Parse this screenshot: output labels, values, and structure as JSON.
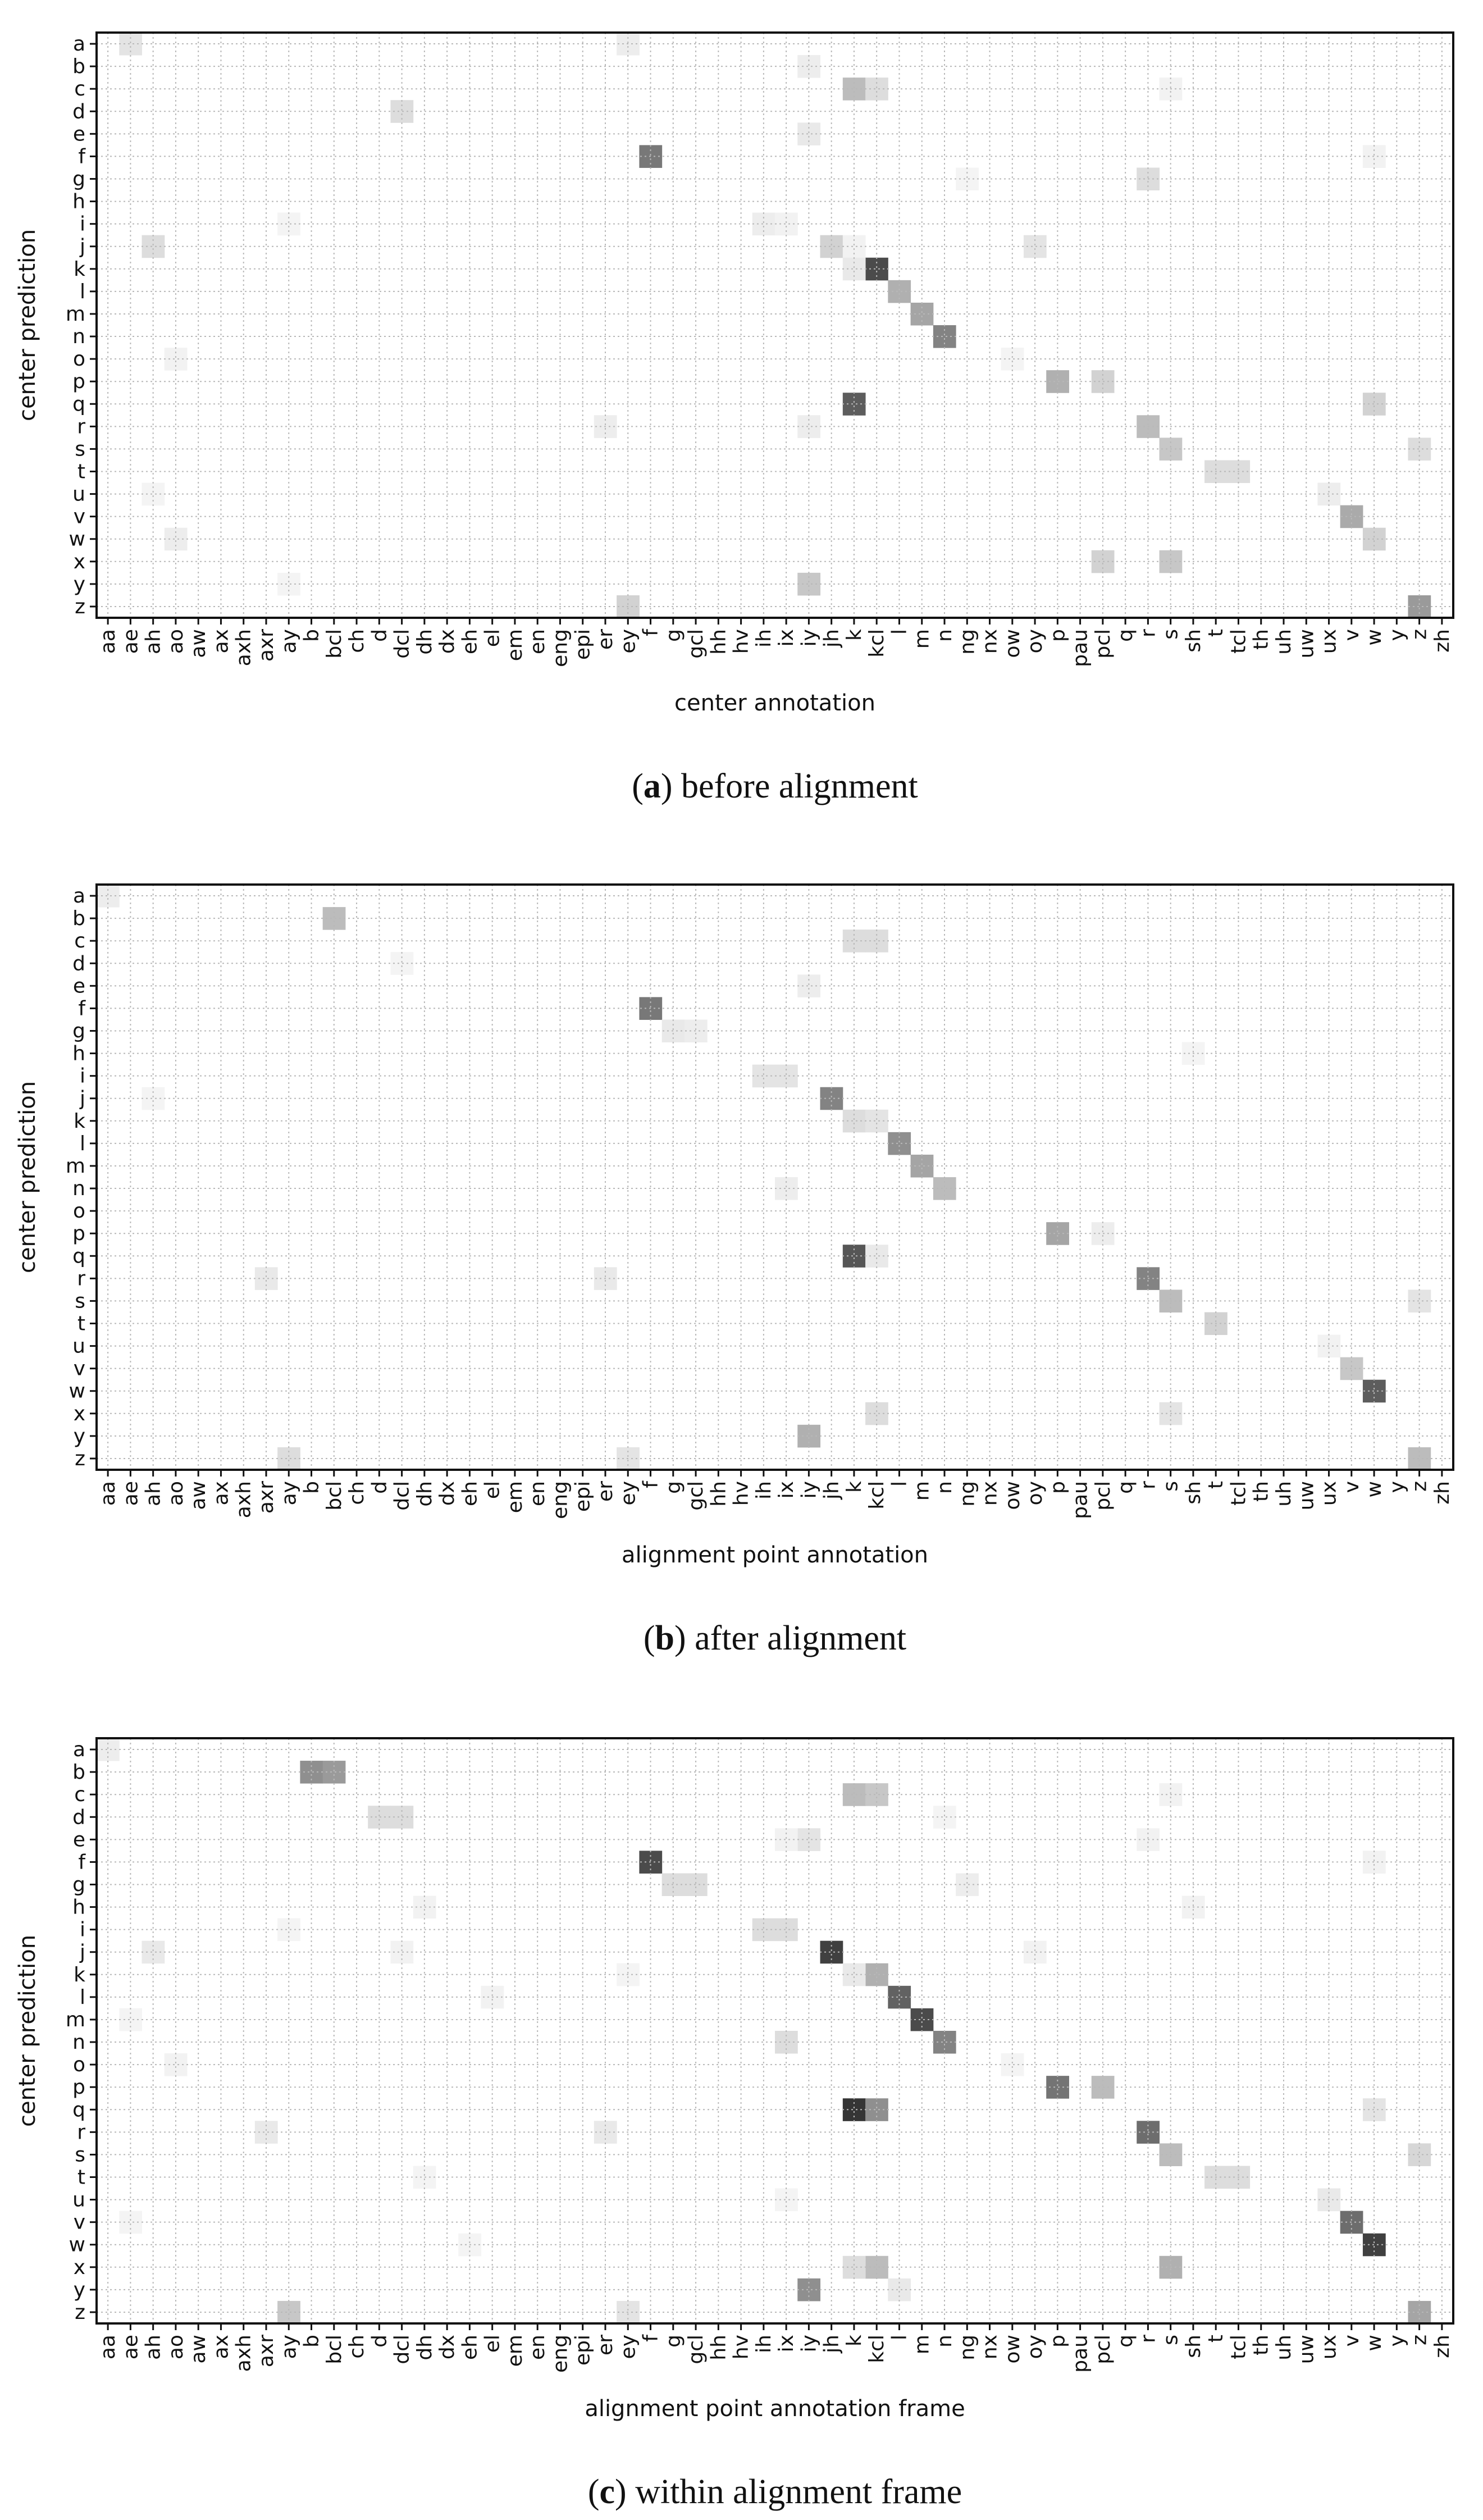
{
  "chart_data": [
    {
      "type": "heatmap",
      "title": "",
      "xlabel": "center annotation",
      "ylabel": "center prediction",
      "caption_letter": "a",
      "caption_text": "before alignment",
      "grid": true,
      "colormap": "grayscale (white = 0, dark = high)",
      "x_categories": [
        "aa",
        "ae",
        "ah",
        "ao",
        "aw",
        "ax",
        "axh",
        "axr",
        "ay",
        "b",
        "bcl",
        "ch",
        "d",
        "dcl",
        "dh",
        "dx",
        "eh",
        "el",
        "em",
        "en",
        "eng",
        "epi",
        "er",
        "ey",
        "f",
        "g",
        "gcl",
        "hh",
        "hv",
        "ih",
        "ix",
        "iy",
        "jh",
        "k",
        "kcl",
        "l",
        "m",
        "n",
        "ng",
        "nx",
        "ow",
        "oy",
        "p",
        "pau",
        "pcl",
        "q",
        "r",
        "s",
        "sh",
        "t",
        "tcl",
        "th",
        "uh",
        "uw",
        "ux",
        "v",
        "w",
        "y",
        "z",
        "zh"
      ],
      "y_categories": [
        "a",
        "b",
        "c",
        "d",
        "e",
        "f",
        "g",
        "h",
        "i",
        "j",
        "k",
        "l",
        "m",
        "n",
        "o",
        "p",
        "q",
        "r",
        "s",
        "t",
        "u",
        "v",
        "w",
        "x",
        "y",
        "z"
      ],
      "cells": [
        [
          "a",
          "ae",
          0.12
        ],
        [
          "a",
          "ey",
          0.08
        ],
        [
          "b",
          "iy",
          0.08
        ],
        [
          "c",
          "k",
          0.3
        ],
        [
          "c",
          "kcl",
          0.15
        ],
        [
          "c",
          "s",
          0.06
        ],
        [
          "d",
          "dcl",
          0.15
        ],
        [
          "e",
          "iy",
          0.1
        ],
        [
          "f",
          "f",
          0.6
        ],
        [
          "f",
          "w",
          0.06
        ],
        [
          "g",
          "r",
          0.15
        ],
        [
          "g",
          "ng",
          0.05
        ],
        [
          "i",
          "ih",
          0.08
        ],
        [
          "i",
          "ix",
          0.06
        ],
        [
          "i",
          "ay",
          0.05
        ],
        [
          "j",
          "ah",
          0.15
        ],
        [
          "j",
          "jh",
          0.2
        ],
        [
          "j",
          "oy",
          0.12
        ],
        [
          "j",
          "k",
          0.06
        ],
        [
          "k",
          "kcl",
          0.8
        ],
        [
          "k",
          "k",
          0.1
        ],
        [
          "l",
          "l",
          0.35
        ],
        [
          "m",
          "m",
          0.4
        ],
        [
          "n",
          "n",
          0.55
        ],
        [
          "o",
          "ao",
          0.06
        ],
        [
          "o",
          "ow",
          0.05
        ],
        [
          "p",
          "p",
          0.35
        ],
        [
          "p",
          "pcl",
          0.2
        ],
        [
          "q",
          "k",
          0.72
        ],
        [
          "q",
          "w",
          0.2
        ],
        [
          "r",
          "r",
          0.3
        ],
        [
          "r",
          "er",
          0.08
        ],
        [
          "r",
          "iy",
          0.08
        ],
        [
          "s",
          "s",
          0.25
        ],
        [
          "s",
          "z",
          0.15
        ],
        [
          "t",
          "t",
          0.15
        ],
        [
          "t",
          "tcl",
          0.15
        ],
        [
          "u",
          "ux",
          0.08
        ],
        [
          "u",
          "ah",
          0.05
        ],
        [
          "v",
          "v",
          0.38
        ],
        [
          "w",
          "w",
          0.2
        ],
        [
          "w",
          "ao",
          0.08
        ],
        [
          "x",
          "pcl",
          0.2
        ],
        [
          "x",
          "s",
          0.25
        ],
        [
          "y",
          "iy",
          0.25
        ],
        [
          "y",
          "ay",
          0.05
        ],
        [
          "z",
          "z",
          0.45
        ],
        [
          "z",
          "ey",
          0.2
        ]
      ]
    },
    {
      "type": "heatmap",
      "title": "",
      "xlabel": "alignment point annotation",
      "ylabel": "center prediction",
      "caption_letter": "b",
      "caption_text": "after alignment",
      "grid": true,
      "colormap": "grayscale (white = 0, dark = high)",
      "x_categories": [
        "aa",
        "ae",
        "ah",
        "ao",
        "aw",
        "ax",
        "axh",
        "axr",
        "ay",
        "b",
        "bcl",
        "ch",
        "d",
        "dcl",
        "dh",
        "dx",
        "eh",
        "el",
        "em",
        "en",
        "eng",
        "epi",
        "er",
        "ey",
        "f",
        "g",
        "gcl",
        "hh",
        "hv",
        "ih",
        "ix",
        "iy",
        "jh",
        "k",
        "kcl",
        "l",
        "m",
        "n",
        "ng",
        "nx",
        "ow",
        "oy",
        "p",
        "pau",
        "pcl",
        "q",
        "r",
        "s",
        "sh",
        "t",
        "tcl",
        "th",
        "uh",
        "uw",
        "ux",
        "v",
        "w",
        "y",
        "z",
        "zh"
      ],
      "y_categories": [
        "a",
        "b",
        "c",
        "d",
        "e",
        "f",
        "g",
        "h",
        "i",
        "j",
        "k",
        "l",
        "m",
        "n",
        "o",
        "p",
        "q",
        "r",
        "s",
        "t",
        "u",
        "v",
        "w",
        "x",
        "y",
        "z"
      ],
      "cells": [
        [
          "a",
          "aa",
          0.08
        ],
        [
          "b",
          "bcl",
          0.3
        ],
        [
          "c",
          "k",
          0.15
        ],
        [
          "c",
          "kcl",
          0.15
        ],
        [
          "d",
          "dcl",
          0.05
        ],
        [
          "e",
          "iy",
          0.08
        ],
        [
          "f",
          "f",
          0.6
        ],
        [
          "g",
          "g",
          0.1
        ],
        [
          "g",
          "gcl",
          0.08
        ],
        [
          "h",
          "sh",
          0.05
        ],
        [
          "i",
          "ih",
          0.12
        ],
        [
          "i",
          "ix",
          0.12
        ],
        [
          "j",
          "jh",
          0.55
        ],
        [
          "j",
          "ah",
          0.05
        ],
        [
          "k",
          "k",
          0.15
        ],
        [
          "k",
          "kcl",
          0.12
        ],
        [
          "l",
          "l",
          0.5
        ],
        [
          "m",
          "m",
          0.4
        ],
        [
          "n",
          "n",
          0.3
        ],
        [
          "n",
          "ix",
          0.08
        ],
        [
          "p",
          "p",
          0.4
        ],
        [
          "p",
          "pcl",
          0.08
        ],
        [
          "q",
          "k",
          0.75
        ],
        [
          "q",
          "kcl",
          0.1
        ],
        [
          "r",
          "r",
          0.55
        ],
        [
          "r",
          "axr",
          0.1
        ],
        [
          "r",
          "er",
          0.1
        ],
        [
          "s",
          "s",
          0.3
        ],
        [
          "s",
          "z",
          0.12
        ],
        [
          "t",
          "t",
          0.2
        ],
        [
          "u",
          "ux",
          0.06
        ],
        [
          "v",
          "v",
          0.25
        ],
        [
          "w",
          "w",
          0.72
        ],
        [
          "x",
          "kcl",
          0.15
        ],
        [
          "x",
          "s",
          0.12
        ],
        [
          "y",
          "iy",
          0.35
        ],
        [
          "z",
          "ay",
          0.15
        ],
        [
          "z",
          "ey",
          0.12
        ],
        [
          "z",
          "z",
          0.3
        ]
      ]
    },
    {
      "type": "heatmap",
      "title": "",
      "xlabel": "alignment point annotation frame",
      "ylabel": "center prediction",
      "caption_letter": "c",
      "caption_text": "within alignment frame",
      "grid": true,
      "colormap": "grayscale (white = 0, dark = high)",
      "x_categories": [
        "aa",
        "ae",
        "ah",
        "ao",
        "aw",
        "ax",
        "axh",
        "axr",
        "ay",
        "b",
        "bcl",
        "ch",
        "d",
        "dcl",
        "dh",
        "dx",
        "eh",
        "el",
        "em",
        "en",
        "eng",
        "epi",
        "er",
        "ey",
        "f",
        "g",
        "gcl",
        "hh",
        "hv",
        "ih",
        "ix",
        "iy",
        "jh",
        "k",
        "kcl",
        "l",
        "m",
        "n",
        "ng",
        "nx",
        "ow",
        "oy",
        "p",
        "pau",
        "pcl",
        "q",
        "r",
        "s",
        "sh",
        "t",
        "tcl",
        "th",
        "uh",
        "uw",
        "ux",
        "v",
        "w",
        "y",
        "z",
        "zh"
      ],
      "y_categories": [
        "a",
        "b",
        "c",
        "d",
        "e",
        "f",
        "g",
        "h",
        "i",
        "j",
        "k",
        "l",
        "m",
        "n",
        "o",
        "p",
        "q",
        "r",
        "s",
        "t",
        "u",
        "v",
        "w",
        "x",
        "y",
        "z"
      ],
      "cells": [
        [
          "a",
          "aa",
          0.08
        ],
        [
          "b",
          "b",
          0.5
        ],
        [
          "b",
          "bcl",
          0.45
        ],
        [
          "c",
          "k",
          0.3
        ],
        [
          "c",
          "kcl",
          0.25
        ],
        [
          "c",
          "s",
          0.06
        ],
        [
          "d",
          "d",
          0.15
        ],
        [
          "d",
          "dcl",
          0.15
        ],
        [
          "d",
          "n",
          0.05
        ],
        [
          "e",
          "iy",
          0.12
        ],
        [
          "e",
          "ix",
          0.06
        ],
        [
          "e",
          "r",
          0.06
        ],
        [
          "f",
          "f",
          0.8
        ],
        [
          "f",
          "w",
          0.06
        ],
        [
          "g",
          "g",
          0.15
        ],
        [
          "g",
          "gcl",
          0.15
        ],
        [
          "g",
          "ng",
          0.08
        ],
        [
          "h",
          "dh",
          0.06
        ],
        [
          "h",
          "sh",
          0.06
        ],
        [
          "i",
          "ih",
          0.15
        ],
        [
          "i",
          "ix",
          0.15
        ],
        [
          "i",
          "ay",
          0.05
        ],
        [
          "j",
          "jh",
          0.85
        ],
        [
          "j",
          "ah",
          0.1
        ],
        [
          "j",
          "dcl",
          0.06
        ],
        [
          "j",
          "oy",
          0.06
        ],
        [
          "k",
          "kcl",
          0.35
        ],
        [
          "k",
          "k",
          0.1
        ],
        [
          "k",
          "ey",
          0.05
        ],
        [
          "l",
          "l",
          0.7
        ],
        [
          "l",
          "el",
          0.06
        ],
        [
          "m",
          "m",
          0.8
        ],
        [
          "m",
          "ae",
          0.05
        ],
        [
          "n",
          "n",
          0.55
        ],
        [
          "n",
          "ix",
          0.15
        ],
        [
          "o",
          "ao",
          0.06
        ],
        [
          "o",
          "ow",
          0.05
        ],
        [
          "p",
          "p",
          0.62
        ],
        [
          "p",
          "pcl",
          0.3
        ],
        [
          "q",
          "k",
          0.9
        ],
        [
          "q",
          "kcl",
          0.5
        ],
        [
          "q",
          "w",
          0.12
        ],
        [
          "r",
          "r",
          0.65
        ],
        [
          "r",
          "axr",
          0.1
        ],
        [
          "r",
          "er",
          0.1
        ],
        [
          "s",
          "s",
          0.3
        ],
        [
          "s",
          "z",
          0.18
        ],
        [
          "t",
          "t",
          0.15
        ],
        [
          "t",
          "tcl",
          0.15
        ],
        [
          "t",
          "dh",
          0.05
        ],
        [
          "u",
          "ux",
          0.1
        ],
        [
          "u",
          "ix",
          0.05
        ],
        [
          "v",
          "v",
          0.65
        ],
        [
          "v",
          "ae",
          0.05
        ],
        [
          "w",
          "w",
          0.85
        ],
        [
          "w",
          "eh",
          0.05
        ],
        [
          "x",
          "kcl",
          0.3
        ],
        [
          "x",
          "k",
          0.15
        ],
        [
          "x",
          "s",
          0.35
        ],
        [
          "y",
          "iy",
          0.5
        ],
        [
          "y",
          "l",
          0.1
        ],
        [
          "z",
          "ay",
          0.25
        ],
        [
          "z",
          "ey",
          0.12
        ],
        [
          "z",
          "z",
          0.4
        ]
      ]
    }
  ]
}
